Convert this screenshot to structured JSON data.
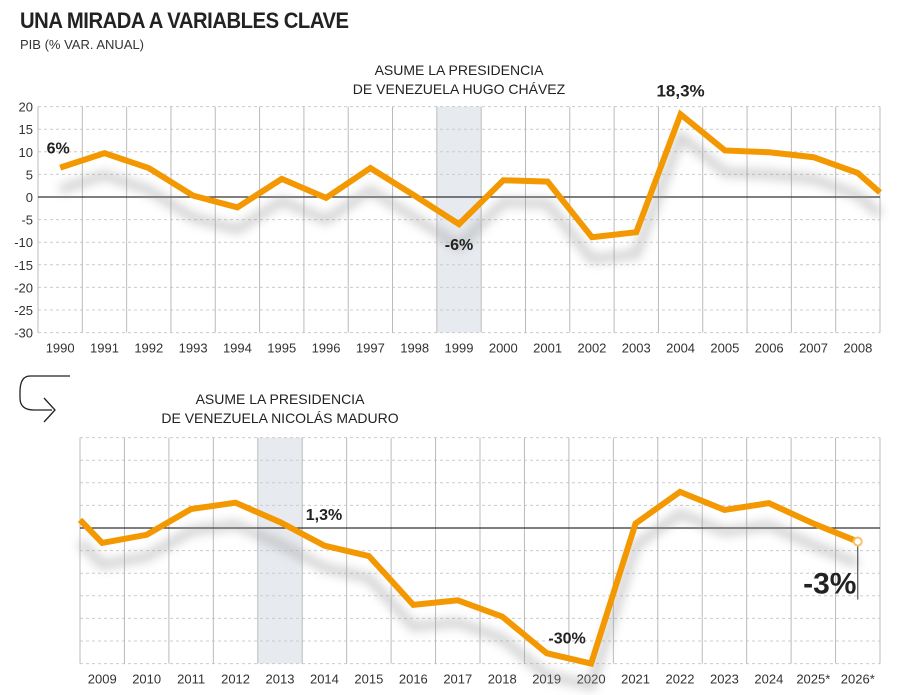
{
  "header": {
    "title": "UNA MIRADA A VARIABLES CLAVE",
    "subtitle": "PIB (% VAR. ANUAL)"
  },
  "colors": {
    "line": "#F39800",
    "highlight": "#E7EAEE",
    "grid": "#BBBBBB",
    "zero": "#333333"
  },
  "chart_data": [
    {
      "type": "line",
      "title": "PIB (% VAR. ANUAL)",
      "ylim": [
        -30,
        20
      ],
      "yticks": [
        "20",
        "15",
        "10",
        "5",
        "0",
        "-5",
        "-10",
        "-15",
        "-20",
        "-25",
        "-30"
      ],
      "categories": [
        "1990",
        "1991",
        "1992",
        "1993",
        "1994",
        "1995",
        "1996",
        "1997",
        "1998",
        "1999",
        "2000",
        "2001",
        "2002",
        "2003",
        "2004",
        "2005",
        "2006",
        "2007",
        "2008"
      ],
      "values": [
        6.5,
        9.7,
        6.4,
        0.3,
        -2.3,
        4.0,
        -0.2,
        6.4,
        0.3,
        -6.0,
        3.7,
        3.4,
        -8.9,
        -7.8,
        18.3,
        10.3,
        9.9,
        8.8,
        5.3
      ],
      "highlight_category": "1999",
      "annotation": [
        "ASUME LA PRESIDENCIA",
        "DE VENEZUELA HUGO CHÁVEZ"
      ],
      "data_labels": [
        {
          "category": "1990",
          "text": "6%"
        },
        {
          "category": "1999",
          "text": "-6%"
        },
        {
          "category": "2004",
          "text": "18,3%"
        }
      ]
    },
    {
      "type": "line",
      "ylim": [
        -30,
        20
      ],
      "categories": [
        "2009",
        "2010",
        "2011",
        "2012",
        "2013",
        "2014",
        "2015",
        "2016",
        "2017",
        "2018",
        "2019",
        "2020",
        "2021",
        "2022",
        "2023",
        "2024",
        "2025*",
        "2026*"
      ],
      "values": [
        -3.3,
        -1.5,
        4.2,
        5.6,
        1.3,
        -3.9,
        -6.2,
        -17.0,
        -16.0,
        -19.6,
        -27.7,
        -30.0,
        1.0,
        8.0,
        4.0,
        5.5,
        1.0,
        -3.0
      ],
      "highlight_category": "2013",
      "annotation": [
        "ASUME LA PRESIDENCIA",
        "DE VENEZUELA NICOLÁS MADURO"
      ],
      "data_labels": [
        {
          "category": "2013",
          "text": "1,3%"
        },
        {
          "category": "2020",
          "text": "-30%"
        },
        {
          "category": "2026*",
          "text": "-3%"
        }
      ]
    }
  ]
}
